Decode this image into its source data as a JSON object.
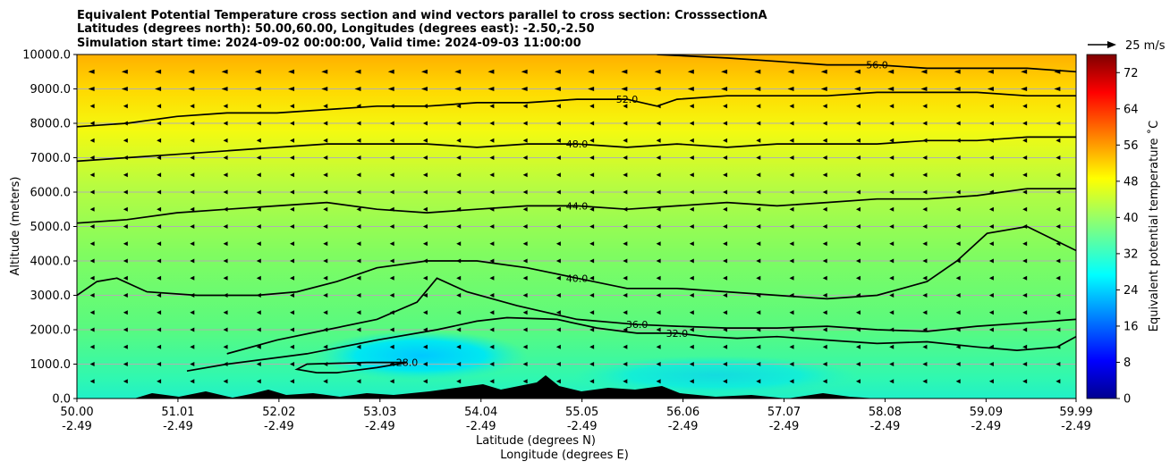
{
  "chart_data": {
    "type": "heatmap",
    "title_lines": [
      "Equivalent Potential Temperature cross section and wind vectors parallel to cross section: CrosssectionA",
      "Latitudes (degrees north): 50.00,60.00, Longitudes (degrees east): -2.50,-2.50",
      "Simulation start time: 2024-09-02 00:00:00, Valid time: 2024-09-03 11:00:00"
    ],
    "ylabel": "Altitude (meters)",
    "xlabel_1": "Latitude (degrees N)",
    "xlabel_2": "Longitude (degrees E)",
    "ylim": [
      0,
      10000
    ],
    "xlim": [
      50.0,
      59.99
    ],
    "y_ticks": [
      {
        "value": 0,
        "label": "0.0"
      },
      {
        "value": 1000,
        "label": "1000.0"
      },
      {
        "value": 2000,
        "label": "2000.0"
      },
      {
        "value": 3000,
        "label": "3000.0"
      },
      {
        "value": 4000,
        "label": "4000.0"
      },
      {
        "value": 5000,
        "label": "5000.0"
      },
      {
        "value": 6000,
        "label": "6000.0"
      },
      {
        "value": 7000,
        "label": "7000.0"
      },
      {
        "value": 8000,
        "label": "8000.0"
      },
      {
        "value": 9000,
        "label": "9000.0"
      },
      {
        "value": 10000,
        "label": "10000.0"
      }
    ],
    "x_ticks": [
      {
        "value": 50.0,
        "label1": "50.00",
        "label2": "-2.49"
      },
      {
        "value": 51.01,
        "label1": "51.01",
        "label2": "-2.49"
      },
      {
        "value": 52.02,
        "label1": "52.02",
        "label2": "-2.49"
      },
      {
        "value": 53.03,
        "label1": "53.03",
        "label2": "-2.49"
      },
      {
        "value": 54.04,
        "label1": "54.04",
        "label2": "-2.49"
      },
      {
        "value": 55.05,
        "label1": "55.05",
        "label2": "-2.49"
      },
      {
        "value": 56.06,
        "label1": "56.06",
        "label2": "-2.49"
      },
      {
        "value": 57.07,
        "label1": "57.07",
        "label2": "-2.49"
      },
      {
        "value": 58.08,
        "label1": "58.08",
        "label2": "-2.49"
      },
      {
        "value": 59.09,
        "label1": "59.09",
        "label2": "-2.49"
      },
      {
        "value": 59.99,
        "label1": "59.99",
        "label2": "-2.49"
      }
    ],
    "grid": "horizontal",
    "colorbar": {
      "label": "Equivalent potential temperature ˚C",
      "range": [
        0,
        76
      ],
      "ticks": [
        0,
        8,
        16,
        24,
        32,
        40,
        48,
        56,
        64,
        72
      ],
      "colormap": "jet"
    },
    "wind_key": {
      "label": "25 m/s"
    },
    "contours": [
      {
        "level": 28.0,
        "label": "28.0",
        "points": [
          [
            52.4,
            750
          ],
          [
            52.2,
            850
          ],
          [
            52.3,
            1000
          ],
          [
            52.9,
            1050
          ],
          [
            53.3,
            1050
          ],
          [
            53.0,
            900
          ],
          [
            52.6,
            750
          ],
          [
            52.4,
            750
          ]
        ]
      },
      {
        "level": 32.0,
        "label": "32.0",
        "points": [
          [
            51.1,
            800
          ],
          [
            51.5,
            1000
          ],
          [
            52.3,
            1300
          ],
          [
            53.0,
            1700
          ],
          [
            53.6,
            2000
          ],
          [
            54.0,
            2250
          ],
          [
            54.3,
            2350
          ],
          [
            54.8,
            2300
          ],
          [
            55.2,
            2050
          ],
          [
            55.6,
            1900
          ],
          [
            56.0,
            1900
          ],
          [
            56.3,
            1800
          ],
          [
            56.6,
            1750
          ],
          [
            57.0,
            1800
          ],
          [
            57.5,
            1700
          ],
          [
            58.0,
            1600
          ],
          [
            58.5,
            1650
          ],
          [
            59.0,
            1500
          ],
          [
            59.4,
            1400
          ],
          [
            59.8,
            1500
          ],
          [
            59.99,
            1800
          ]
        ]
      },
      {
        "level": 36.0,
        "label": "36.0",
        "points": [
          [
            51.5,
            1300
          ],
          [
            52.0,
            1700
          ],
          [
            52.5,
            2000
          ],
          [
            53.0,
            2300
          ],
          [
            53.4,
            2800
          ],
          [
            53.6,
            3500
          ],
          [
            53.9,
            3100
          ],
          [
            54.4,
            2700
          ],
          [
            55.0,
            2300
          ],
          [
            55.6,
            2150
          ],
          [
            56.0,
            2100
          ],
          [
            56.5,
            2050
          ],
          [
            57.0,
            2050
          ],
          [
            57.5,
            2100
          ],
          [
            58.0,
            2000
          ],
          [
            58.5,
            1950
          ],
          [
            59.0,
            2100
          ],
          [
            59.5,
            2200
          ],
          [
            59.99,
            2300
          ]
        ]
      },
      {
        "level": 40.0,
        "label": "40.0",
        "points": [
          [
            50.0,
            3000
          ],
          [
            50.2,
            3400
          ],
          [
            50.4,
            3500
          ],
          [
            50.7,
            3100
          ],
          [
            51.2,
            3000
          ],
          [
            51.8,
            3000
          ],
          [
            52.2,
            3100
          ],
          [
            52.6,
            3400
          ],
          [
            53.0,
            3800
          ],
          [
            53.5,
            4000
          ],
          [
            54.0,
            4000
          ],
          [
            54.5,
            3800
          ],
          [
            55.0,
            3500
          ],
          [
            55.5,
            3200
          ],
          [
            56.0,
            3200
          ],
          [
            56.5,
            3100
          ],
          [
            57.0,
            3000
          ],
          [
            57.5,
            2900
          ],
          [
            58.0,
            3000
          ],
          [
            58.5,
            3400
          ],
          [
            58.8,
            4000
          ],
          [
            59.1,
            4800
          ],
          [
            59.5,
            5000
          ],
          [
            59.99,
            4300
          ]
        ]
      },
      {
        "level": 44.0,
        "label": "44.0",
        "points": [
          [
            50.0,
            5100
          ],
          [
            50.5,
            5200
          ],
          [
            51.0,
            5400
          ],
          [
            51.5,
            5500
          ],
          [
            52.0,
            5600
          ],
          [
            52.5,
            5700
          ],
          [
            53.0,
            5500
          ],
          [
            53.5,
            5400
          ],
          [
            54.0,
            5500
          ],
          [
            54.5,
            5600
          ],
          [
            55.0,
            5600
          ],
          [
            55.5,
            5500
          ],
          [
            56.0,
            5600
          ],
          [
            56.5,
            5700
          ],
          [
            57.0,
            5600
          ],
          [
            57.5,
            5700
          ],
          [
            58.0,
            5800
          ],
          [
            58.5,
            5800
          ],
          [
            59.0,
            5900
          ],
          [
            59.5,
            6100
          ],
          [
            59.99,
            6100
          ]
        ]
      },
      {
        "level": 48.0,
        "label": "48.0",
        "points": [
          [
            50.0,
            6900
          ],
          [
            50.5,
            7000
          ],
          [
            51.0,
            7100
          ],
          [
            51.5,
            7200
          ],
          [
            52.0,
            7300
          ],
          [
            52.5,
            7400
          ],
          [
            53.0,
            7400
          ],
          [
            53.5,
            7400
          ],
          [
            54.0,
            7300
          ],
          [
            54.5,
            7400
          ],
          [
            55.0,
            7400
          ],
          [
            55.5,
            7300
          ],
          [
            56.0,
            7400
          ],
          [
            56.5,
            7300
          ],
          [
            57.0,
            7400
          ],
          [
            57.5,
            7400
          ],
          [
            58.0,
            7400
          ],
          [
            58.5,
            7500
          ],
          [
            59.0,
            7500
          ],
          [
            59.5,
            7600
          ],
          [
            59.99,
            7600
          ]
        ]
      },
      {
        "level": 52.0,
        "label": "52.0",
        "points": [
          [
            50.0,
            7900
          ],
          [
            50.5,
            8000
          ],
          [
            51.0,
            8200
          ],
          [
            51.5,
            8300
          ],
          [
            52.0,
            8300
          ],
          [
            52.5,
            8400
          ],
          [
            53.0,
            8500
          ],
          [
            53.5,
            8500
          ],
          [
            54.0,
            8600
          ],
          [
            54.5,
            8600
          ],
          [
            55.0,
            8700
          ],
          [
            55.5,
            8700
          ],
          [
            55.8,
            8500
          ],
          [
            56.0,
            8700
          ],
          [
            56.5,
            8800
          ],
          [
            57.0,
            8800
          ],
          [
            57.5,
            8800
          ],
          [
            58.0,
            8900
          ],
          [
            58.5,
            8900
          ],
          [
            59.0,
            8900
          ],
          [
            59.5,
            8800
          ],
          [
            59.99,
            8800
          ]
        ]
      },
      {
        "level": 56.0,
        "label": "56.0",
        "points": [
          [
            55.8,
            10000
          ],
          [
            56.5,
            9900
          ],
          [
            57.0,
            9800
          ],
          [
            57.5,
            9700
          ],
          [
            58.0,
            9700
          ],
          [
            58.5,
            9600
          ],
          [
            59.0,
            9600
          ],
          [
            59.5,
            9600
          ],
          [
            59.99,
            9500
          ]
        ]
      }
    ]
  }
}
